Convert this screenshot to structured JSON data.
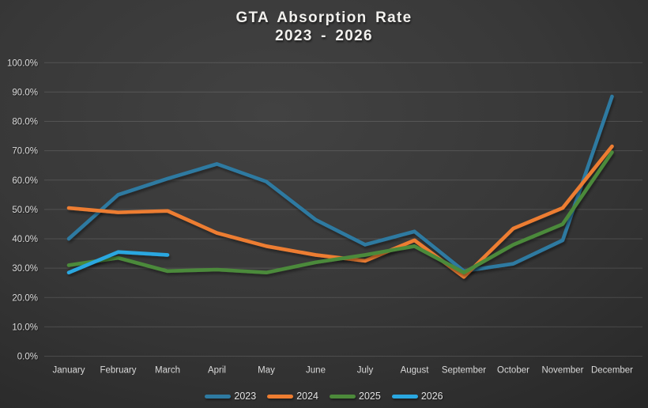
{
  "title": {
    "line1": "GTA Absorption Rate",
    "line2": "2023 - 2026"
  },
  "colors": {
    "background_center": "#424242",
    "background_edge": "#1f1f1f",
    "gridline": "rgba(255,255,255,0.13)",
    "axis_text": "#dcdcdc",
    "title_text": "#f2f1ee"
  },
  "chart_data": {
    "type": "line",
    "title": "GTA Absorption Rate",
    "subtitle": "2023 - 2026",
    "categories": [
      "January",
      "February",
      "March",
      "April",
      "May",
      "June",
      "July",
      "August",
      "September",
      "October",
      "November",
      "December"
    ],
    "y_axis": {
      "min": 0,
      "max": 100,
      "step": 10,
      "unit": "%",
      "tick_labels": [
        "0.0%",
        "10.0%",
        "20.0%",
        "30.0%",
        "40.0%",
        "50.0%",
        "60.0%",
        "70.0%",
        "80.0%",
        "90.0%",
        "100.0%"
      ]
    },
    "grid": true,
    "legend_position": "bottom",
    "series": [
      {
        "name": "2023",
        "color": "#2e7aa1",
        "values": [
          40,
          55,
          60.5,
          65.5,
          59.5,
          46.5,
          38,
          42.5,
          29,
          31.5,
          39.5,
          88.5
        ]
      },
      {
        "name": "2024",
        "color": "#ed7d31",
        "values": [
          50.5,
          49,
          49.5,
          42,
          37.5,
          34.5,
          32.5,
          39.5,
          27,
          43.5,
          50.5,
          71.5
        ]
      },
      {
        "name": "2025",
        "color": "#4c8a3a",
        "values": [
          31,
          33.5,
          29,
          29.5,
          28.5,
          32,
          34.5,
          37.5,
          28.5,
          38,
          45,
          69.5
        ]
      },
      {
        "name": "2026",
        "color": "#2aa7e0",
        "values": [
          28.5,
          35.5,
          34.5
        ]
      }
    ]
  }
}
